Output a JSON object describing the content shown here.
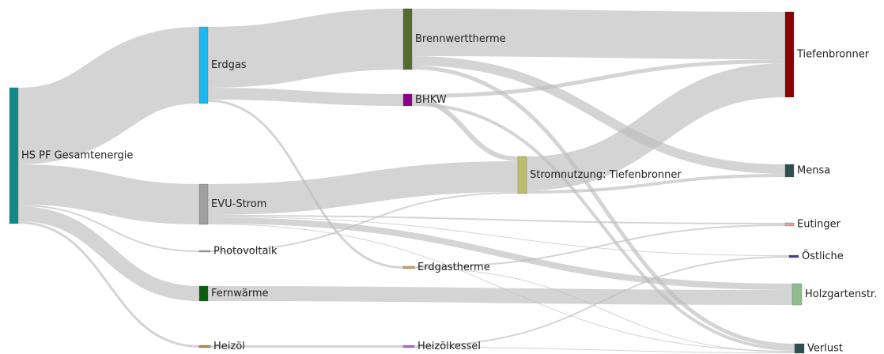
{
  "chart_data": {
    "type": "sankey",
    "nodes": [
      {
        "label": "HS PF Gesamtenergie",
        "color": "#13898a"
      },
      {
        "label": "Erdgas",
        "color": "#1ab8ee"
      },
      {
        "label": "EVU-Strom",
        "color": "#a0a0a0"
      },
      {
        "label": "Photovoltaik",
        "color": "#9a9a9a"
      },
      {
        "label": "Fernwärme",
        "color": "#0b5e0b"
      },
      {
        "label": "Heizöl",
        "color": "#b08a5a"
      },
      {
        "label": "Brennwerttherme",
        "color": "#556b2f"
      },
      {
        "label": "BHKW",
        "color": "#8b008b"
      },
      {
        "label": "Erdgastherme",
        "color": "#c8a070"
      },
      {
        "label": "Heizölkessel",
        "color": "#b266d6"
      },
      {
        "label": "Stromnutzung: Tiefenbronner",
        "color": "#bdbd6b"
      },
      {
        "label": "Tiefenbronner",
        "color": "#8b0000"
      },
      {
        "label": "Mensa",
        "color": "#2f4f4f"
      },
      {
        "label": "Eutinger",
        "color": "#e8a090"
      },
      {
        "label": "Östliche",
        "color": "#4b3c8c"
      },
      {
        "label": "Holzgartenstr.",
        "color": "#8fbc8f"
      },
      {
        "label": "Verlust",
        "color": "#2f4f4f"
      }
    ],
    "links": [
      {
        "source": 0,
        "target": 1,
        "value": 97
      },
      {
        "source": 0,
        "target": 2,
        "value": 51
      },
      {
        "source": 0,
        "target": 3,
        "value": 2
      },
      {
        "source": 0,
        "target": 4,
        "value": 19
      },
      {
        "source": 0,
        "target": 5,
        "value": 3
      },
      {
        "source": 1,
        "target": 6,
        "value": 77
      },
      {
        "source": 1,
        "target": 7,
        "value": 15
      },
      {
        "source": 1,
        "target": 8,
        "value": 3
      },
      {
        "source": 2,
        "target": 10,
        "value": 39
      },
      {
        "source": 2,
        "target": 13,
        "value": 2
      },
      {
        "source": 2,
        "target": 14,
        "value": 1
      },
      {
        "source": 2,
        "target": 15,
        "value": 8
      },
      {
        "source": 2,
        "target": 16,
        "value": 1
      },
      {
        "source": 3,
        "target": 10,
        "value": 2
      },
      {
        "source": 4,
        "target": 15,
        "value": 19
      },
      {
        "source": 5,
        "target": 9,
        "value": 3
      },
      {
        "source": 6,
        "target": 11,
        "value": 60
      },
      {
        "source": 6,
        "target": 12,
        "value": 12
      },
      {
        "source": 6,
        "target": 16,
        "value": 5
      },
      {
        "source": 7,
        "target": 11,
        "value": 5
      },
      {
        "source": 7,
        "target": 10,
        "value": 6
      },
      {
        "source": 7,
        "target": 16,
        "value": 4
      },
      {
        "source": 8,
        "target": 13,
        "value": 2
      },
      {
        "source": 8,
        "target": 16,
        "value": 1
      },
      {
        "source": 9,
        "target": 14,
        "value": 2
      },
      {
        "source": 9,
        "target": 16,
        "value": 1
      },
      {
        "source": 10,
        "target": 11,
        "value": 43
      },
      {
        "source": 10,
        "target": 12,
        "value": 4
      }
    ]
  }
}
